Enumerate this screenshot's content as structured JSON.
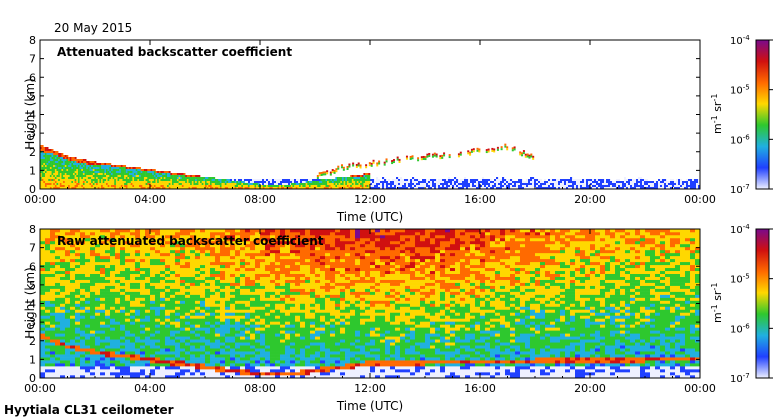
{
  "date": "20 May 2015",
  "footer": "Hyytiala CL31 ceilometer",
  "colorscale": {
    "ticks": [
      "10",
      "10",
      "10",
      "10"
    ],
    "exponents": [
      "-4",
      "-5",
      "-6",
      "-7"
    ],
    "unit_m": "m",
    "unit_m_exp": "-1",
    "unit_sr": "sr",
    "unit_sr_exp": "-1",
    "colors": [
      "#7a0a8c",
      "#d01010",
      "#ff6a00",
      "#ffd800",
      "#2ec82e",
      "#20b0e0",
      "#2040ff",
      "#eef0ff"
    ]
  },
  "chart_data": [
    {
      "type": "heatmap",
      "title": "Attenuated backscatter coefficient",
      "xlabel": "Time (UTC)",
      "ylabel": "Height (km)",
      "x_ticks": [
        "00:00",
        "04:00",
        "08:00",
        "12:00",
        "16:00",
        "20:00",
        "00:00"
      ],
      "y_ticks": [
        "0",
        "1",
        "2",
        "3",
        "4",
        "5",
        "6",
        "7",
        "8"
      ],
      "xlim_hours": [
        0,
        24
      ],
      "ylim_km": [
        0,
        8
      ],
      "colorbar_range": [
        1e-07,
        0.0001
      ],
      "colorbar_log": true,
      "boundary_layer_top_km": [
        {
          "hour": 0,
          "km": 2.3
        },
        {
          "hour": 1,
          "km": 1.7
        },
        {
          "hour": 2,
          "km": 1.4
        },
        {
          "hour": 3,
          "km": 1.2
        },
        {
          "hour": 4,
          "km": 1.0
        },
        {
          "hour": 5,
          "km": 0.8
        },
        {
          "hour": 6,
          "km": 0.6
        },
        {
          "hour": 7,
          "km": 0.4
        },
        {
          "hour": 8,
          "km": 0.2
        },
        {
          "hour": 9,
          "km": 0.2
        },
        {
          "hour": 10,
          "km": 0.4
        },
        {
          "hour": 11,
          "km": 0.6
        },
        {
          "hour": 12,
          "km": 0.8
        }
      ],
      "cloud_layer_km": [
        {
          "hour": 10.0,
          "km": 0.6
        },
        {
          "hour": 11.0,
          "km": 1.1
        },
        {
          "hour": 12.0,
          "km": 1.3
        },
        {
          "hour": 13.0,
          "km": 1.5
        },
        {
          "hour": 14.0,
          "km": 1.7
        },
        {
          "hour": 15.0,
          "km": 1.8
        },
        {
          "hour": 16.0,
          "km": 2.0
        },
        {
          "hour": 17.0,
          "km": 2.2
        },
        {
          "hour": 18.0,
          "km": 1.6
        }
      ]
    },
    {
      "type": "heatmap",
      "title": "Raw attenuated backscatter coefficient",
      "xlabel": "Time (UTC)",
      "ylabel": "Height (km)",
      "x_ticks": [
        "00:00",
        "04:00",
        "08:00",
        "12:00",
        "16:00",
        "20:00",
        "00:00"
      ],
      "y_ticks": [
        "0",
        "1",
        "2",
        "3",
        "4",
        "5",
        "6",
        "7",
        "8"
      ],
      "xlim_hours": [
        0,
        24
      ],
      "ylim_km": [
        0,
        8
      ],
      "colorbar_range": [
        1e-07,
        0.0001
      ],
      "colorbar_log": true
    }
  ]
}
